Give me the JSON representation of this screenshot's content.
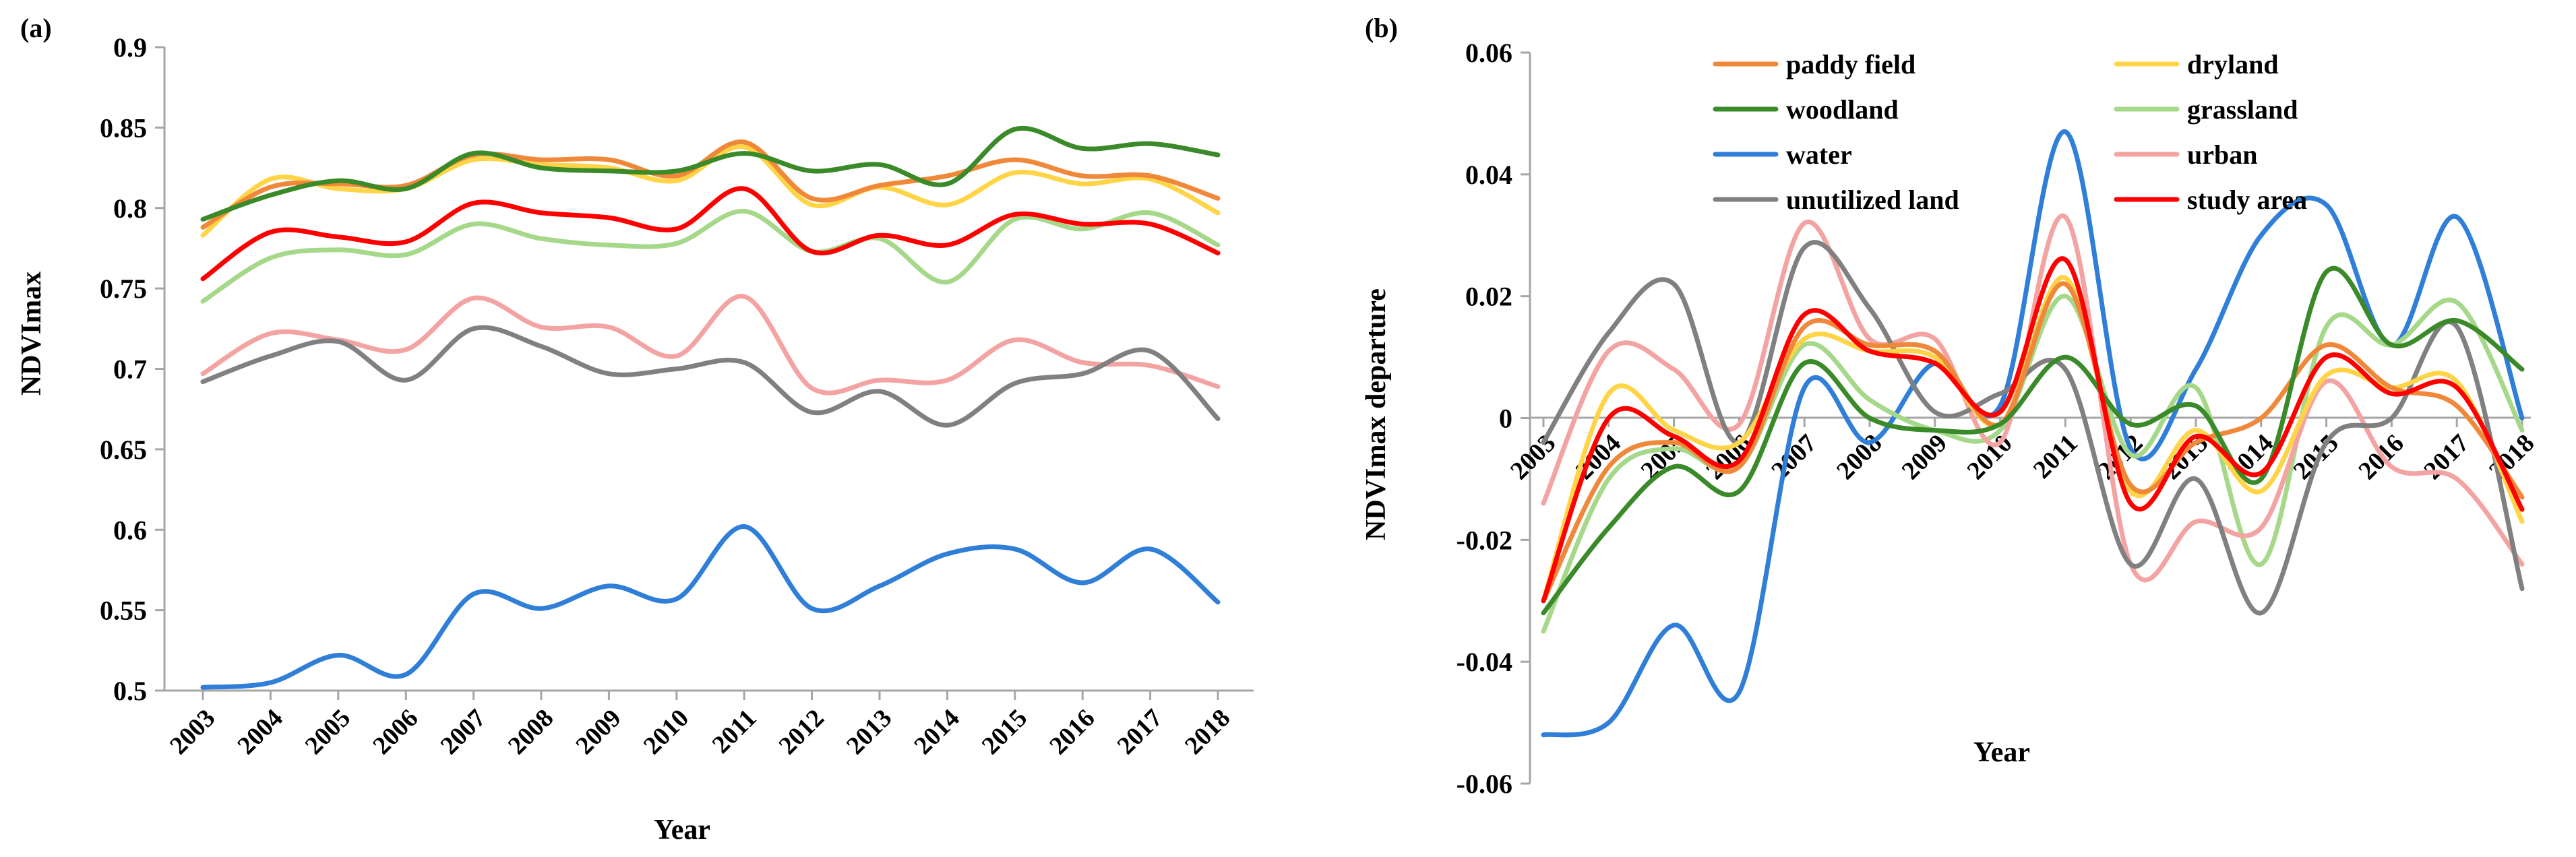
{
  "chart_data": [
    {
      "panel": "a",
      "panel_label": "(a)",
      "type": "line",
      "title": "",
      "xlabel": "Year",
      "ylabel": "NDVImax",
      "ylim": [
        0.5,
        0.9
      ],
      "ytick_labels": [
        "0.5",
        "0.55",
        "0.6",
        "0.65",
        "0.7",
        "0.75",
        "0.8",
        "0.85",
        "0.9"
      ],
      "categories": [
        "2003",
        "2004",
        "2005",
        "2006",
        "2007",
        "2008",
        "2009",
        "2010",
        "2011",
        "2012",
        "2013",
        "2014",
        "2015",
        "2016",
        "2017",
        "2018"
      ],
      "grid": false,
      "series": [
        {
          "name": "paddy field",
          "color": "#f0883a",
          "values": [
            0.788,
            0.813,
            0.815,
            0.814,
            0.833,
            0.83,
            0.83,
            0.82,
            0.841,
            0.806,
            0.814,
            0.82,
            0.83,
            0.82,
            0.82,
            0.806
          ]
        },
        {
          "name": "dryland",
          "color": "#ffd447",
          "values": [
            0.783,
            0.818,
            0.812,
            0.812,
            0.83,
            0.827,
            0.825,
            0.817,
            0.838,
            0.802,
            0.813,
            0.802,
            0.822,
            0.815,
            0.818,
            0.797
          ]
        },
        {
          "name": "woodland",
          "color": "#3a8a2a",
          "values": [
            0.793,
            0.808,
            0.817,
            0.812,
            0.834,
            0.825,
            0.823,
            0.823,
            0.834,
            0.823,
            0.827,
            0.815,
            0.849,
            0.837,
            0.84,
            0.833
          ]
        },
        {
          "name": "grassland",
          "color": "#a6d88a",
          "values": [
            0.742,
            0.769,
            0.774,
            0.771,
            0.79,
            0.781,
            0.777,
            0.778,
            0.798,
            0.773,
            0.781,
            0.754,
            0.793,
            0.787,
            0.797,
            0.777
          ]
        },
        {
          "name": "water",
          "color": "#2f7ed8",
          "values": [
            0.502,
            0.505,
            0.522,
            0.51,
            0.56,
            0.551,
            0.565,
            0.557,
            0.602,
            0.551,
            0.565,
            0.585,
            0.588,
            0.567,
            0.588,
            0.555
          ]
        },
        {
          "name": "urban",
          "color": "#f4a3a3",
          "values": [
            0.697,
            0.722,
            0.718,
            0.712,
            0.744,
            0.726,
            0.726,
            0.708,
            0.745,
            0.688,
            0.693,
            0.693,
            0.718,
            0.704,
            0.702,
            0.689
          ]
        },
        {
          "name": "unutilized land",
          "color": "#808080",
          "values": [
            0.692,
            0.708,
            0.717,
            0.693,
            0.725,
            0.714,
            0.697,
            0.7,
            0.704,
            0.673,
            0.686,
            0.665,
            0.691,
            0.697,
            0.711,
            0.669
          ]
        },
        {
          "name": "study area",
          "color": "#ff0000",
          "values": [
            0.756,
            0.785,
            0.782,
            0.779,
            0.803,
            0.797,
            0.794,
            0.787,
            0.812,
            0.773,
            0.783,
            0.777,
            0.796,
            0.79,
            0.79,
            0.772
          ]
        }
      ]
    },
    {
      "panel": "b",
      "panel_label": "(b)",
      "type": "line",
      "title": "",
      "xlabel": "Year",
      "ylabel": "NDVImax departure",
      "ylim": [
        -0.06,
        0.06
      ],
      "ytick_labels": [
        "-0.06",
        "-0.04",
        "-0.02",
        "0",
        "0.02",
        "0.04",
        "0.06"
      ],
      "categories": [
        "2003",
        "2004",
        "2005",
        "2006",
        "2007",
        "2008",
        "2009",
        "2010",
        "2011",
        "2012",
        "2013",
        "2014",
        "2015",
        "2016",
        "2017",
        "2018"
      ],
      "grid": false,
      "legend_position": "top",
      "series": [
        {
          "name": "paddy field",
          "color": "#f0883a",
          "values": [
            -0.03,
            -0.008,
            -0.004,
            -0.008,
            0.015,
            0.012,
            0.011,
            -0.001,
            0.022,
            -0.011,
            -0.004,
            0.0,
            0.012,
            0.005,
            0.002,
            -0.013
          ]
        },
        {
          "name": "dryland",
          "color": "#ffd447",
          "values": [
            -0.03,
            0.004,
            -0.002,
            -0.004,
            0.013,
            0.011,
            0.01,
            -0.001,
            0.023,
            -0.012,
            -0.002,
            -0.012,
            0.007,
            0.005,
            0.006,
            -0.017
          ]
        },
        {
          "name": "woodland",
          "color": "#3a8a2a",
          "values": [
            -0.032,
            -0.018,
            -0.008,
            -0.012,
            0.009,
            0.0,
            -0.002,
            -0.001,
            0.01,
            -0.001,
            0.002,
            -0.01,
            0.024,
            0.012,
            0.016,
            0.008
          ]
        },
        {
          "name": "grassland",
          "color": "#a6d88a",
          "values": [
            -0.035,
            -0.01,
            -0.005,
            -0.008,
            0.012,
            0.003,
            -0.002,
            -0.002,
            0.02,
            -0.006,
            0.005,
            -0.024,
            0.015,
            0.012,
            0.019,
            -0.002
          ]
        },
        {
          "name": "water",
          "color": "#2f7ed8",
          "values": [
            -0.052,
            -0.05,
            -0.034,
            -0.045,
            0.005,
            -0.004,
            0.009,
            0.002,
            0.047,
            -0.005,
            0.008,
            0.03,
            0.035,
            0.012,
            0.033,
            0.0
          ]
        },
        {
          "name": "urban",
          "color": "#f4a3a3",
          "values": [
            -0.014,
            0.011,
            0.008,
            -0.001,
            0.032,
            0.013,
            0.013,
            -0.004,
            0.033,
            -0.024,
            -0.017,
            -0.018,
            0.006,
            -0.008,
            -0.01,
            -0.024
          ]
        },
        {
          "name": "unutilized land",
          "color": "#808080",
          "values": [
            -0.004,
            0.014,
            0.022,
            -0.004,
            0.028,
            0.018,
            0.001,
            0.004,
            0.008,
            -0.024,
            -0.01,
            -0.032,
            -0.004,
            0.0,
            0.015,
            -0.028
          ]
        },
        {
          "name": "study area",
          "color": "#ff0000",
          "values": [
            -0.03,
            0.0,
            -0.003,
            -0.007,
            0.017,
            0.011,
            0.009,
            0.001,
            0.026,
            -0.014,
            -0.003,
            -0.009,
            0.01,
            0.004,
            0.005,
            -0.015
          ]
        }
      ]
    }
  ]
}
